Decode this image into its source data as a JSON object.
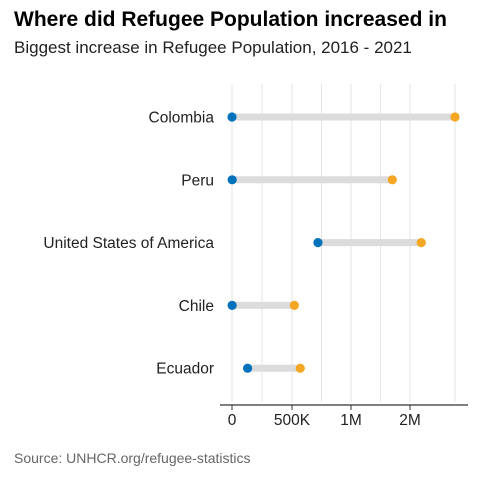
{
  "header": {
    "title": "Where did Refugee Population increased in",
    "subtitle": "Biggest increase in Refugee Population, 2016 - 2021"
  },
  "footer": {
    "source": "Source: UNHCR.org/refugee-statistics"
  },
  "colors": {
    "start_point": "#0072bc",
    "end_point": "#f5a623",
    "connector": "#dcdcdc",
    "grid": "#e6e6e6",
    "axis": "#333333"
  },
  "chart_data": {
    "type": "dumbbell",
    "title": "Where did Refugee Population increased in",
    "subtitle": "Biggest increase in Refugee Population, 2016 - 2021",
    "categories": [
      "Colombia",
      "Peru",
      "United States of America",
      "Chile",
      "Ecuador"
    ],
    "series": [
      {
        "values": [
          100,
          1500,
          720000,
          1000,
          130000
        ]
      },
      {
        "values": [
          2400000,
          1700000,
          2100000,
          520000,
          570000
        ]
      }
    ],
    "x_ticks": [
      {
        "value": 0,
        "label": "0"
      },
      {
        "value": 500000,
        "label": "500K"
      },
      {
        "value": 1000000,
        "label": "1M"
      },
      {
        "value": 2000000,
        "label": "2M"
      }
    ],
    "xlim": [
      0,
      2400000
    ],
    "grid": true
  }
}
